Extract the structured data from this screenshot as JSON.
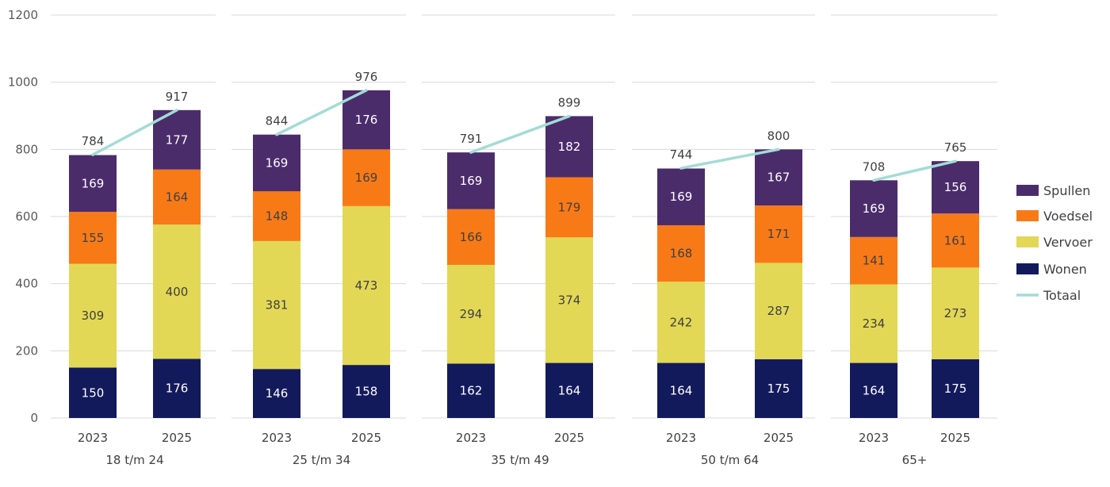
{
  "chart_data": {
    "type": "bar",
    "stacked": true,
    "title": "",
    "xlabel": "",
    "ylabel": "",
    "ylim": [
      0,
      1200
    ],
    "yticks": [
      0,
      200,
      400,
      600,
      800,
      1000,
      1200
    ],
    "grid": true,
    "legend_position": "right",
    "groups": [
      {
        "label": "18 t/m 24",
        "categories": [
          "2023",
          "2025"
        ]
      },
      {
        "label": "25 t/m 34",
        "categories": [
          "2023",
          "2025"
        ]
      },
      {
        "label": "35 t/m 49",
        "categories": [
          "2023",
          "2025"
        ]
      },
      {
        "label": "50 t/m 64",
        "categories": [
          "2023",
          "2025"
        ]
      },
      {
        "label": "65+",
        "categories": [
          "2023",
          "2025"
        ]
      }
    ],
    "series": [
      {
        "name": "Wonen",
        "color": "#131a5c",
        "label_color": "#ffffff",
        "values": [
          150,
          176,
          146,
          158,
          162,
          164,
          164,
          175,
          164,
          175
        ]
      },
      {
        "name": "Vervoer",
        "color": "#e2d855",
        "label_color": "#404040",
        "values": [
          309,
          400,
          381,
          473,
          294,
          374,
          242,
          287,
          234,
          273
        ]
      },
      {
        "name": "Voedsel",
        "color": "#f87a17",
        "label_color": "#404040",
        "values": [
          155,
          164,
          148,
          169,
          166,
          179,
          168,
          171,
          141,
          161
        ]
      },
      {
        "name": "Spullen",
        "color": "#4b2c6b",
        "label_color": "#ffffff",
        "values": [
          169,
          177,
          169,
          176,
          169,
          182,
          169,
          167,
          169,
          156
        ]
      }
    ],
    "total": {
      "name": "Totaal",
      "color": "#a3dcd6",
      "values": [
        784,
        917,
        844,
        976,
        791,
        899,
        744,
        800,
        708,
        765
      ]
    },
    "legend": [
      "Spullen",
      "Voedsel",
      "Vervoer",
      "Wonen",
      "Totaal"
    ]
  }
}
